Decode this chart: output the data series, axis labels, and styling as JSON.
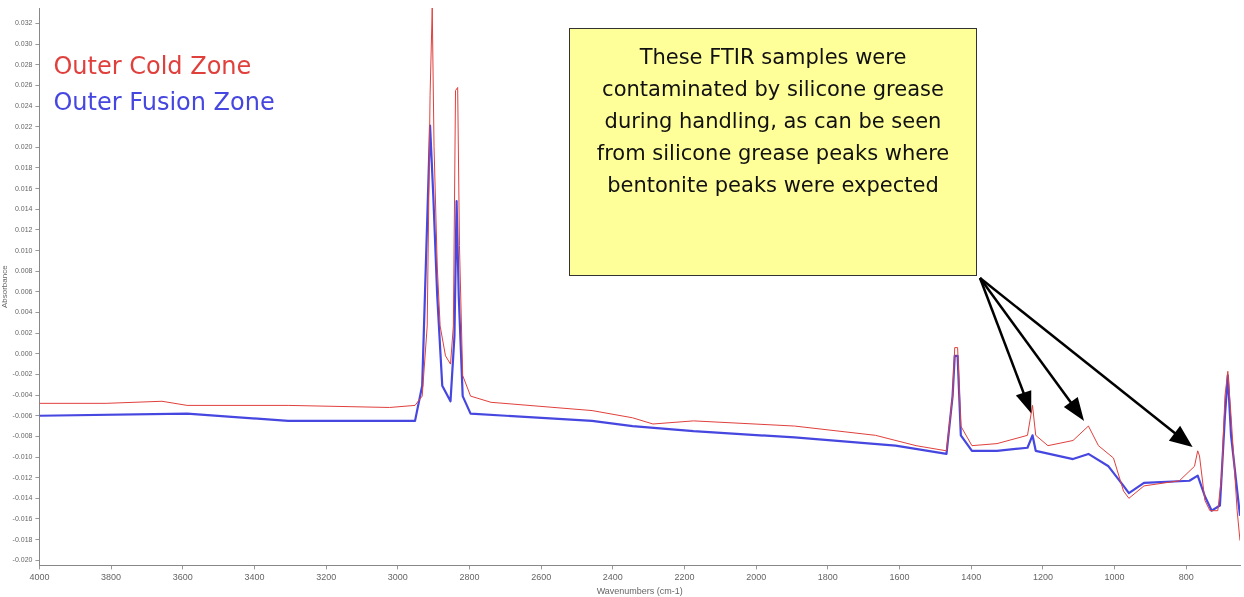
{
  "chart_data": {
    "type": "line",
    "xlabel": "Wavenumbers (cm-1)",
    "ylabel": "Absorbance",
    "annotations": [
      "These FTIR samples were contaminated by silicone grease during handling, as can be seen from silicone grease peaks where bentonite peaks were expected"
    ],
    "xlim": [
      4000,
      650
    ],
    "xticks": [
      4000,
      3800,
      3600,
      3400,
      3200,
      3000,
      2800,
      2600,
      2400,
      2200,
      2000,
      1800,
      1600,
      1400,
      1200,
      1000,
      800
    ],
    "ylim": [
      -0.0205,
      0.0335
    ],
    "yticks": [
      {
        "value": -0.02,
        "label": "-0.020"
      },
      {
        "value": -0.018,
        "label": "-0.018"
      },
      {
        "value": -0.016,
        "label": "-0.016"
      },
      {
        "value": -0.014,
        "label": "-0.014"
      },
      {
        "value": -0.012,
        "label": "-0.012"
      },
      {
        "value": -0.01,
        "label": "-0.010"
      },
      {
        "value": -0.008,
        "label": "-0.008"
      },
      {
        "value": -0.006,
        "label": "-0.006"
      },
      {
        "value": -0.004,
        "label": "-0.004"
      },
      {
        "value": -0.002,
        "label": "-0.002"
      },
      {
        "value": 0,
        "label": "0.000"
      },
      {
        "value": 0.002,
        "label": "0.002"
      },
      {
        "value": 0.004,
        "label": "0.004"
      },
      {
        "value": 0.006,
        "label": "0.006"
      },
      {
        "value": 0.008,
        "label": "0.008"
      },
      {
        "value": 0.01,
        "label": "0.010"
      },
      {
        "value": 0.012,
        "label": "0.012"
      },
      {
        "value": 0.014,
        "label": "0.014"
      },
      {
        "value": 0.016,
        "label": "0.016"
      },
      {
        "value": 0.018,
        "label": "0.018"
      },
      {
        "value": 0.02,
        "label": "0.020"
      },
      {
        "value": 0.022,
        "label": "0.022"
      },
      {
        "value": 0.024,
        "label": "0.024"
      },
      {
        "value": 0.026,
        "label": "0.026"
      },
      {
        "value": 0.028,
        "label": "0.028"
      },
      {
        "value": 0.03,
        "label": "0.030"
      },
      {
        "value": 0.032,
        "label": "0.032"
      }
    ],
    "grid": false,
    "legend": "top left",
    "marker": "none",
    "line_style": "solid",
    "series": [
      {
        "name": "Outer Cold Zone",
        "color": "#e0403c",
        "x": [
          4000,
          3814,
          3658,
          3588,
          3306,
          3023,
          2952,
          2932,
          2918,
          2910,
          2904,
          2899,
          2890,
          2882,
          2867,
          2853,
          2845,
          2839,
          2833,
          2828,
          2819,
          2797,
          2740,
          2458,
          2345,
          2288,
          2175,
          1893,
          1667,
          1554,
          1469,
          1452,
          1446,
          1438,
          1429,
          1398,
          1328,
          1243,
          1229,
          1220,
          1186,
          1116,
          1073,
          1045,
          1003,
          975,
          960,
          918,
          819,
          777,
          768,
          763,
          748,
          734,
          712,
          701,
          692,
          684,
          675,
          658,
          650
        ],
        "values": [
          -0.0048,
          -0.0048,
          -0.0046,
          -0.005,
          -0.005,
          -0.0052,
          -0.005,
          -0.0041,
          0.0027,
          0.025,
          0.0335,
          0.0201,
          0.0085,
          0.0027,
          -0.0002,
          -0.001,
          0.0027,
          0.0255,
          0.0258,
          0.0105,
          -0.0021,
          -0.0041,
          -0.0047,
          -0.0055,
          -0.0062,
          -0.0068,
          -0.0065,
          -0.007,
          -0.0079,
          -0.0089,
          -0.0094,
          -0.0041,
          0.0006,
          0.0006,
          -0.007,
          -0.0089,
          -0.0087,
          -0.0079,
          -0.005,
          -0.0079,
          -0.0089,
          -0.0084,
          -0.007,
          -0.0089,
          -0.0101,
          -0.0133,
          -0.014,
          -0.0128,
          -0.0123,
          -0.0109,
          -0.0094,
          -0.0099,
          -0.0142,
          -0.0152,
          -0.0152,
          -0.0118,
          -0.0041,
          -0.0017,
          -0.006,
          -0.0152,
          -0.0181
        ]
      },
      {
        "name": "Outer Fusion Zone",
        "color": "#4646e0",
        "x": [
          4000,
          3588,
          3306,
          2952,
          2932,
          2910,
          2901,
          2890,
          2876,
          2853,
          2842,
          2836,
          2830,
          2819,
          2797,
          2458,
          2345,
          2175,
          1893,
          1611,
          1469,
          1452,
          1446,
          1438,
          1429,
          1398,
          1328,
          1243,
          1229,
          1220,
          1116,
          1073,
          1017,
          975,
          960,
          918,
          791,
          768,
          748,
          729,
          706,
          692,
          684,
          675,
          650
        ],
        "values": [
          -0.006,
          -0.0058,
          -0.0065,
          -0.0065,
          -0.0031,
          0.0221,
          0.0153,
          0.0056,
          -0.0031,
          -0.0046,
          0.0017,
          0.0148,
          0.0056,
          -0.0041,
          -0.0058,
          -0.0065,
          -0.007,
          -0.0075,
          -0.0081,
          -0.0089,
          -0.0097,
          -0.0041,
          -0.0002,
          -0.0002,
          -0.0079,
          -0.0094,
          -0.0094,
          -0.0091,
          -0.0079,
          -0.0094,
          -0.0102,
          -0.0097,
          -0.0109,
          -0.0128,
          -0.0135,
          -0.0125,
          -0.0123,
          -0.0118,
          -0.0138,
          -0.0152,
          -0.0147,
          -0.006,
          -0.0021,
          -0.0079,
          -0.0157
        ]
      }
    ]
  }
}
